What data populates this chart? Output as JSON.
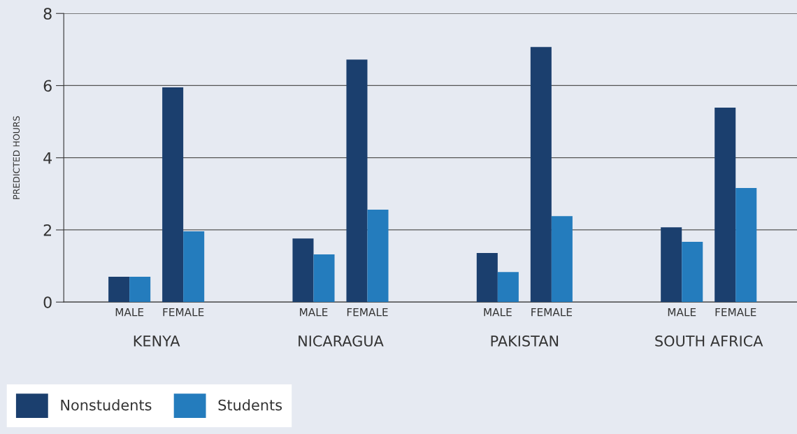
{
  "chart_data": {
    "type": "bar",
    "ylabel": "PREDICTED HOURS",
    "categories": [
      "MALE",
      "FEMALE",
      "MALE",
      "FEMALE",
      "MALE",
      "FEMALE",
      "MALE",
      "FEMALE"
    ],
    "annotations": [
      "KENYA",
      "NICARAGUA",
      "PAKISTAN",
      "SOUTH AFRICA"
    ],
    "series": [
      {
        "name": "Nonstudents",
        "color": "#1b3f6e",
        "values": [
          0.7,
          5.95,
          1.76,
          6.72,
          1.36,
          7.07,
          2.07,
          5.39
        ]
      },
      {
        "name": "Students",
        "color": "#247cbd",
        "values": [
          0.7,
          1.96,
          1.32,
          2.56,
          0.83,
          2.38,
          1.67,
          3.16
        ]
      }
    ],
    "ylim": [
      0,
      8
    ],
    "yticks": [
      0,
      2,
      4,
      6,
      8
    ],
    "grid": "y",
    "legend": "bottom left"
  }
}
